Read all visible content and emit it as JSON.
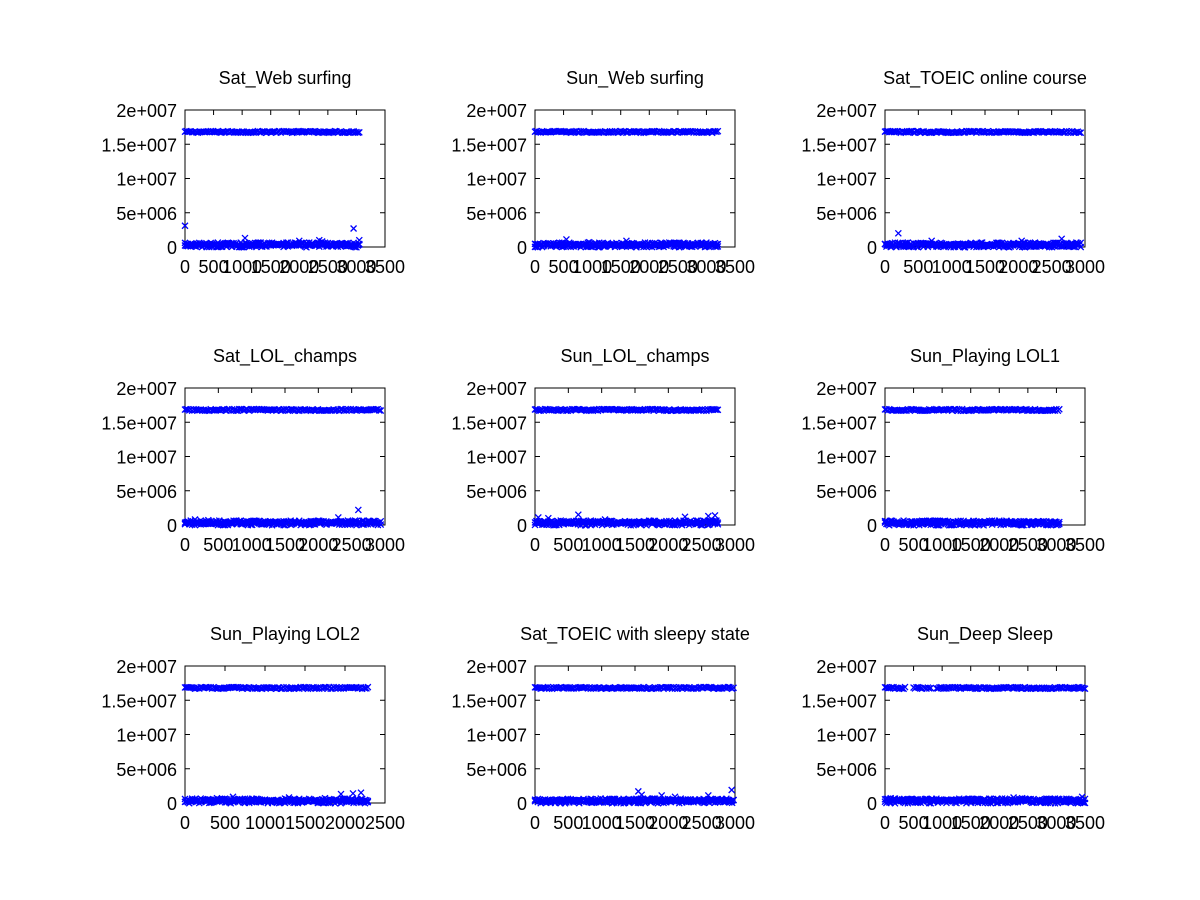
{
  "chart_data": [
    {
      "type": "scatter",
      "title": "Sat_Web surfing",
      "xlim": [
        0,
        3500
      ],
      "ylim": [
        0,
        20000000
      ],
      "xticks": [
        "0",
        "500",
        "1000",
        "1500",
        "2000",
        "2500",
        "3000",
        "3500"
      ],
      "yticks": [
        "0",
        "5e+006",
        "1e+007",
        "1.5e+007",
        "2e+007"
      ],
      "grid": false,
      "series_color": "#0000ff",
      "high_band": {
        "x_range": [
          0,
          3050
        ],
        "y": 16800000
      },
      "low_band": {
        "x_range": [
          0,
          3050
        ],
        "y": 200000
      },
      "outliers": [
        [
          0,
          3100000
        ],
        [
          1050,
          1300000
        ],
        [
          2000,
          900000
        ],
        [
          2350,
          1000000
        ],
        [
          2400,
          800000
        ],
        [
          2950,
          2700000
        ],
        [
          3050,
          1000000
        ]
      ]
    },
    {
      "type": "scatter",
      "title": "Sun_Web surfing",
      "xlim": [
        0,
        3500
      ],
      "ylim": [
        0,
        20000000
      ],
      "xticks": [
        "0",
        "500",
        "1000",
        "1500",
        "2000",
        "2500",
        "3000",
        "3500"
      ],
      "yticks": [
        "0",
        "5e+006",
        "1e+007",
        "1.5e+007",
        "2e+007"
      ],
      "grid": false,
      "series_color": "#0000ff",
      "high_band": {
        "x_range": [
          0,
          3200
        ],
        "y": 16800000
      },
      "low_band": {
        "x_range": [
          0,
          3200
        ],
        "y": 200000
      },
      "outliers": [
        [
          550,
          1100000
        ],
        [
          950,
          700000
        ],
        [
          1600,
          900000
        ],
        [
          2850,
          600000
        ]
      ]
    },
    {
      "type": "scatter",
      "title": "Sat_TOEIC online course",
      "xlim": [
        0,
        3000
      ],
      "ylim": [
        0,
        20000000
      ],
      "xticks": [
        "0",
        "500",
        "1000",
        "1500",
        "2000",
        "2500",
        "3000"
      ],
      "yticks": [
        "0",
        "5e+006",
        "1e+007",
        "1.5e+007",
        "2e+007"
      ],
      "grid": false,
      "series_color": "#0000ff",
      "high_band": {
        "x_range": [
          0,
          2950
        ],
        "y": 16800000
      },
      "low_band": {
        "x_range": [
          0,
          2950
        ],
        "y": 200000
      },
      "outliers": [
        [
          200,
          2000000
        ],
        [
          700,
          900000
        ],
        [
          2050,
          900000
        ],
        [
          2650,
          1200000
        ]
      ]
    },
    {
      "type": "scatter",
      "title": "Sat_LOL_champs",
      "xlim": [
        0,
        3000
      ],
      "ylim": [
        0,
        20000000
      ],
      "xticks": [
        "0",
        "500",
        "1000",
        "1500",
        "2000",
        "2500",
        "3000"
      ],
      "yticks": [
        "0",
        "5e+006",
        "1e+007",
        "1.5e+007",
        "2e+007"
      ],
      "grid": false,
      "series_color": "#0000ff",
      "high_band": {
        "x_range": [
          0,
          2950
        ],
        "y": 16800000
      },
      "low_band": {
        "x_range": [
          0,
          2950
        ],
        "y": 200000
      },
      "outliers": [
        [
          150,
          800000
        ],
        [
          350,
          700000
        ],
        [
          1050,
          600000
        ],
        [
          2300,
          1100000
        ],
        [
          2600,
          2200000
        ]
      ]
    },
    {
      "type": "scatter",
      "title": "Sun_LOL_champs",
      "xlim": [
        0,
        3000
      ],
      "ylim": [
        0,
        20000000
      ],
      "xticks": [
        "0",
        "500",
        "1000",
        "1500",
        "2000",
        "2500",
        "3000"
      ],
      "yticks": [
        "0",
        "5e+006",
        "1e+007",
        "1.5e+007",
        "2e+007"
      ],
      "grid": false,
      "series_color": "#0000ff",
      "high_band": {
        "x_range": [
          0,
          2750
        ],
        "y": 16800000
      },
      "low_band": {
        "x_range": [
          0,
          2750
        ],
        "y": 200000
      },
      "outliers": [
        [
          50,
          1100000
        ],
        [
          200,
          1000000
        ],
        [
          650,
          1500000
        ],
        [
          1050,
          800000
        ],
        [
          2250,
          1200000
        ],
        [
          2600,
          1300000
        ],
        [
          2700,
          1400000
        ]
      ]
    },
    {
      "type": "scatter",
      "title": "Sun_Playing LOL1",
      "xlim": [
        0,
        3500
      ],
      "ylim": [
        0,
        20000000
      ],
      "xticks": [
        "0",
        "500",
        "1000",
        "1500",
        "2000",
        "2500",
        "3000",
        "3500"
      ],
      "yticks": [
        "0",
        "5e+006",
        "1e+007",
        "1.5e+007",
        "2e+007"
      ],
      "grid": false,
      "series_color": "#0000ff",
      "high_band": {
        "x_range": [
          0,
          3050
        ],
        "y": 16800000
      },
      "low_band": {
        "x_range": [
          0,
          3050
        ],
        "y": 200000
      },
      "outliers": [
        [
          900,
          600000
        ],
        [
          1550,
          600000
        ],
        [
          2700,
          500000
        ]
      ]
    },
    {
      "type": "scatter",
      "title": "Sun_Playing LOL2",
      "xlim": [
        0,
        2500
      ],
      "ylim": [
        0,
        20000000
      ],
      "xticks": [
        "0",
        "500",
        "1000",
        "1500",
        "2000",
        "2500"
      ],
      "yticks": [
        "0",
        "5e+006",
        "1e+007",
        "1.5e+007",
        "2e+007"
      ],
      "grid": false,
      "series_color": "#0000ff",
      "high_band": {
        "x_range": [
          0,
          2300
        ],
        "y": 16800000
      },
      "low_band": {
        "x_range": [
          0,
          2300
        ],
        "y": 200000
      },
      "outliers": [
        [
          400,
          700000
        ],
        [
          600,
          900000
        ],
        [
          1300,
          800000
        ],
        [
          1750,
          700000
        ],
        [
          1950,
          1300000
        ],
        [
          2100,
          1400000
        ],
        [
          2200,
          1500000
        ]
      ]
    },
    {
      "type": "scatter",
      "title": "Sat_TOEIC with sleepy state",
      "xlim": [
        0,
        3000
      ],
      "ylim": [
        0,
        20000000
      ],
      "xticks": [
        "0",
        "500",
        "1000",
        "1500",
        "2000",
        "2500",
        "3000"
      ],
      "yticks": [
        "0",
        "5e+006",
        "1e+007",
        "1.5e+007",
        "2e+007"
      ],
      "grid": false,
      "series_color": "#0000ff",
      "high_band": {
        "x_range": [
          0,
          3000
        ],
        "y": 16800000
      },
      "low_band": {
        "x_range": [
          0,
          3000
        ],
        "y": 200000
      },
      "outliers": [
        [
          1550,
          1700000
        ],
        [
          1600,
          1200000
        ],
        [
          1900,
          1100000
        ],
        [
          2100,
          900000
        ],
        [
          2600,
          1100000
        ],
        [
          2950,
          1900000
        ]
      ]
    },
    {
      "type": "scatter",
      "title": "Sun_Deep Sleep",
      "xlim": [
        0,
        3500
      ],
      "ylim": [
        0,
        20000000
      ],
      "xticks": [
        "0",
        "500",
        "1000",
        "1500",
        "2000",
        "2500",
        "3000",
        "3500"
      ],
      "yticks": [
        "0",
        "5e+006",
        "1e+007",
        "1.5e+007",
        "2e+007"
      ],
      "grid": false,
      "series_color": "#0000ff",
      "high_band": {
        "segments": [
          [
            0,
            350
          ],
          [
            500,
            650
          ],
          [
            700,
            800
          ],
          [
            900,
            3500
          ]
        ],
        "y": 16800000
      },
      "low_band": {
        "x_range": [
          0,
          3500
        ],
        "y": 200000
      },
      "outliers": [
        [
          100,
          700000
        ],
        [
          1450,
          600000
        ],
        [
          2250,
          800000
        ],
        [
          2400,
          700000
        ],
        [
          3450,
          900000
        ]
      ]
    }
  ]
}
